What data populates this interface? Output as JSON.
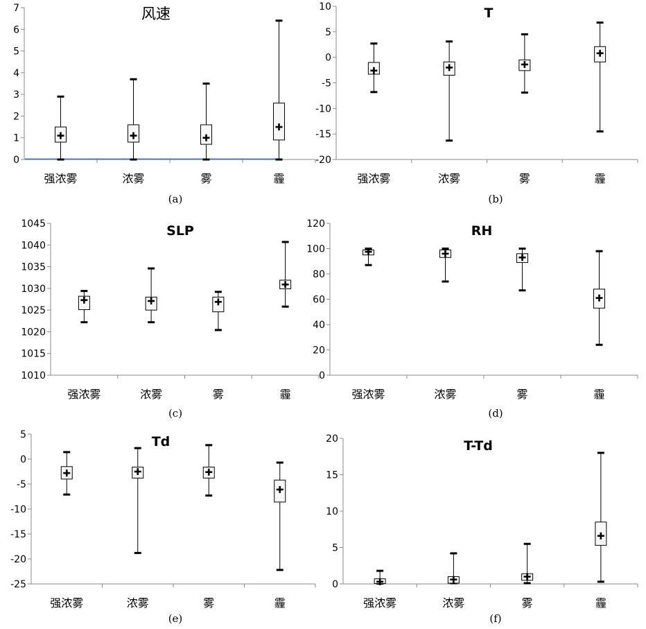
{
  "chart_data": [
    {
      "type": "box",
      "panel": "(a)",
      "title": "风速",
      "categories": [
        "强浓雾",
        "浓雾",
        "雾",
        "霾"
      ],
      "ylim": [
        0,
        7
      ],
      "yticks": [
        0,
        1,
        2,
        3,
        4,
        5,
        6,
        7
      ],
      "series": [
        {
          "min": 0,
          "q1": 0.8,
          "q3": 1.5,
          "max": 2.9,
          "mean": 1.1
        },
        {
          "min": 0,
          "q1": 0.8,
          "q3": 1.6,
          "max": 3.7,
          "mean": 1.1
        },
        {
          "min": 0,
          "q1": 0.7,
          "q3": 1.6,
          "max": 3.5,
          "mean": 1.0
        },
        {
          "min": 0,
          "q1": 0.9,
          "q3": 2.6,
          "max": 6.4,
          "mean": 1.5
        }
      ],
      "baseline_color": "#4472c4"
    },
    {
      "type": "box",
      "panel": "(b)",
      "title": "T",
      "categories": [
        "强浓雾",
        "浓雾",
        "雾",
        "霾"
      ],
      "ylim": [
        -20,
        10
      ],
      "yticks": [
        -20,
        -15,
        -10,
        -5,
        0,
        5,
        10
      ],
      "series": [
        {
          "min": -6.8,
          "q1": -3.3,
          "q3": -1.0,
          "max": 2.7,
          "mean": -2.6
        },
        {
          "min": -16.3,
          "q1": -3.5,
          "q3": -0.9,
          "max": 3.1,
          "mean": -2.0
        },
        {
          "min": -6.9,
          "q1": -2.6,
          "q3": -0.5,
          "max": 4.5,
          "mean": -1.4
        },
        {
          "min": -14.5,
          "q1": -0.9,
          "q3": 2.1,
          "max": 6.8,
          "mean": 0.8
        }
      ]
    },
    {
      "type": "box",
      "panel": "(c)",
      "title": "SLP",
      "categories": [
        "强浓雾",
        "浓雾",
        "雾",
        "霾"
      ],
      "ylim": [
        1010,
        1045
      ],
      "yticks": [
        1010,
        1015,
        1020,
        1025,
        1030,
        1035,
        1040,
        1045
      ],
      "series": [
        {
          "min": 1022.2,
          "q1": 1025.1,
          "q3": 1028.2,
          "max": 1029.4,
          "mean": 1027.3
        },
        {
          "min": 1022.2,
          "q1": 1025.0,
          "q3": 1028.0,
          "max": 1034.6,
          "mean": 1027.1
        },
        {
          "min": 1020.4,
          "q1": 1024.6,
          "q3": 1028.0,
          "max": 1029.2,
          "mean": 1026.9
        },
        {
          "min": 1025.8,
          "q1": 1029.9,
          "q3": 1031.9,
          "max": 1040.7,
          "mean": 1030.9
        }
      ]
    },
    {
      "type": "box",
      "panel": "(d)",
      "title": "RH",
      "categories": [
        "强浓雾",
        "浓雾",
        "雾",
        "霾"
      ],
      "ylim": [
        0,
        120
      ],
      "yticks": [
        0,
        20,
        40,
        60,
        80,
        100,
        120
      ],
      "series": [
        {
          "min": 87,
          "q1": 95,
          "q3": 99,
          "max": 100,
          "mean": 97.5
        },
        {
          "min": 74,
          "q1": 93,
          "q3": 99,
          "max": 100,
          "mean": 96
        },
        {
          "min": 67,
          "q1": 89,
          "q3": 96,
          "max": 100,
          "mean": 93
        },
        {
          "min": 24,
          "q1": 53,
          "q3": 68,
          "max": 98,
          "mean": 61
        }
      ]
    },
    {
      "type": "box",
      "panel": "(e)",
      "title": "Td",
      "categories": [
        "强浓雾",
        "浓雾",
        "雾",
        "霾"
      ],
      "ylim": [
        -25,
        5
      ],
      "yticks": [
        -25,
        -20,
        -15,
        -10,
        -5,
        0,
        5
      ],
      "series": [
        {
          "min": -7.1,
          "q1": -4.0,
          "q3": -1.5,
          "max": 1.4,
          "mean": -2.8
        },
        {
          "min": -18.8,
          "q1": -3.8,
          "q3": -1.6,
          "max": 2.2,
          "mean": -2.5
        },
        {
          "min": -7.3,
          "q1": -3.8,
          "q3": -1.6,
          "max": 2.8,
          "mean": -2.6
        },
        {
          "min": -22.2,
          "q1": -8.6,
          "q3": -4.2,
          "max": -0.7,
          "mean": -6.1
        }
      ]
    },
    {
      "type": "box",
      "panel": "(f)",
      "title": "T-Td",
      "categories": [
        "强浓雾",
        "浓雾",
        "雾",
        "霾"
      ],
      "ylim": [
        0,
        20
      ],
      "yticks": [
        0,
        5,
        10,
        15,
        20
      ],
      "series": [
        {
          "min": 0.05,
          "q1": 0.05,
          "q3": 0.7,
          "max": 1.8,
          "mean": 0.3
        },
        {
          "min": 0.1,
          "q1": 0.1,
          "q3": 1.0,
          "max": 4.2,
          "mean": 0.6
        },
        {
          "min": 0.1,
          "q1": 0.5,
          "q3": 1.4,
          "max": 5.5,
          "mean": 1.0
        },
        {
          "min": 0.3,
          "q1": 5.3,
          "q3": 8.5,
          "max": 18.0,
          "mean": 6.6
        }
      ]
    }
  ]
}
